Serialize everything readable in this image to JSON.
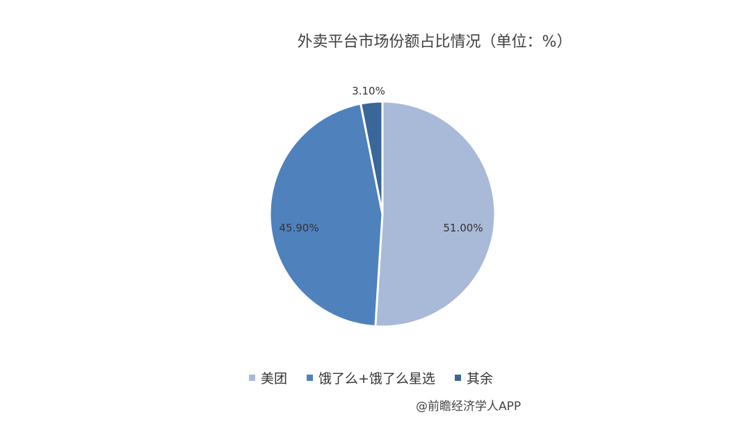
{
  "chart_data": {
    "type": "pie",
    "title": "外卖平台市场份额占比情况（单位：%）",
    "categories": [
      "美团",
      "饿了么+饿了么星选",
      "其余"
    ],
    "values": [
      51.0,
      45.9,
      3.1
    ],
    "data_labels": [
      "51.00%",
      "45.90%",
      "3.10%"
    ],
    "colors": [
      "#A9B9D8",
      "#4F81BD",
      "#3A6699"
    ],
    "legend_position": "bottom",
    "source": "@前瞻经济学人APP"
  }
}
